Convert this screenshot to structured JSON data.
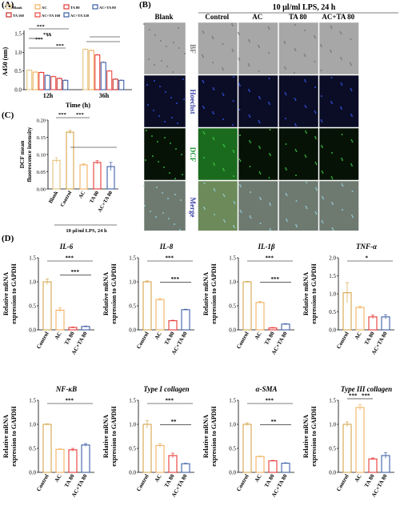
{
  "panels": {
    "a": "(A)",
    "b": "(B)",
    "c": "(C)",
    "d": "(D)"
  },
  "colors": {
    "Blank": "#e3c37e",
    "AC": "#f2b15f",
    "TA 80": "#e63a37",
    "AC+TA 80": "#3d5fa8",
    "TA 160": "#e8493f",
    "AC+TA 160": "#c9302c",
    "AC+TA 320": "#3d5fa8",
    "Control": "#d4a64a"
  },
  "panel_b": {
    "header": "10 μl/ml LPS, 24 h",
    "columns": [
      "Blank",
      "Control",
      "AC",
      "TA 80",
      "AC+TA 80"
    ],
    "rows": [
      {
        "label": "BF",
        "color": "#777777"
      },
      {
        "label": "Hoechst",
        "color": "#3b45a8"
      },
      {
        "label": "DCF",
        "color": "#1f9a3a"
      },
      {
        "label": "Merge",
        "color": "#3b45a8"
      }
    ],
    "scale_bar": "50 μm"
  },
  "chart_data": [
    {
      "id": "A",
      "type": "bar",
      "ylabel": "A450 (nm)",
      "xlabel": "Time (h)",
      "categories": [
        "12h",
        "36h"
      ],
      "legend": [
        "Blank",
        "AC",
        "TA 80",
        "AC+TA 80",
        "TA 160",
        "AC+TA 160",
        "AC+TA 320"
      ],
      "legend_keys": [
        "Blank",
        "AC",
        "TA 80",
        "AC+TA 80",
        "AC+TA 160",
        "TA 160",
        "AC+TA 320"
      ],
      "series_order": [
        "Blank",
        "AC",
        "TA 80",
        "AC+TA 80",
        "TA 160",
        "AC+TA 160",
        "AC+TA 320"
      ],
      "series": [
        {
          "name": "Blank",
          "values": [
            0.52,
            1.08
          ]
        },
        {
          "name": "AC",
          "values": [
            0.47,
            1.05
          ]
        },
        {
          "name": "TA 80",
          "values": [
            0.46,
            0.93
          ]
        },
        {
          "name": "AC+TA 80",
          "values": [
            0.38,
            0.73
          ]
        },
        {
          "name": "TA 160",
          "values": [
            0.35,
            0.5
          ]
        },
        {
          "name": "AC+TA 160",
          "values": [
            0.3,
            0.28
          ]
        },
        {
          "name": "AC+TA 320",
          "values": [
            0.25,
            0.25
          ]
        }
      ],
      "ylim": [
        0,
        1.5
      ],
      "yticks": [
        "0.0",
        "0.5",
        "1.0",
        "1.5"
      ],
      "significance": [
        "***",
        "**",
        "***",
        "***",
        "***"
      ]
    },
    {
      "id": "C",
      "type": "bar",
      "ylabel": "DCF mean fluorescence intensity",
      "categories": [
        "Blank",
        "Control",
        "AC",
        "TA 80",
        "AC+TA 80"
      ],
      "values": [
        0.083,
        0.165,
        0.07,
        0.077,
        0.065
      ],
      "errors": [
        0.008,
        0.005,
        0.003,
        0.005,
        0.012
      ],
      "ylim": [
        0,
        0.2
      ],
      "yticks": [
        "0.00",
        "0.05",
        "0.10",
        "0.15",
        "0.20"
      ],
      "xlabel": "10 μl/ml LPS, 24 h",
      "significance": [
        "***",
        "***"
      ]
    },
    {
      "id": "D-IL-6",
      "type": "bar",
      "title": "IL-6",
      "ylabel": "Relative mRNA expression to GAPDH",
      "categories": [
        "Control",
        "AC",
        "TA 80",
        "AC+TA 80"
      ],
      "values": [
        1.0,
        0.41,
        0.05,
        0.07
      ],
      "errors": [
        0.06,
        0.05,
        0.01,
        0.01
      ],
      "ylim": [
        0,
        1.5
      ],
      "yticks": [
        "0.0",
        "0.5",
        "1.0",
        "1.5"
      ],
      "significance": [
        "***",
        "***"
      ]
    },
    {
      "id": "D-IL-8",
      "type": "bar",
      "title": "IL-8",
      "ylabel": "Relative mRNA expression to GAPDH",
      "categories": [
        "Control",
        "AC",
        "TA 80",
        "AC+TA 80"
      ],
      "values": [
        1.0,
        0.63,
        0.19,
        0.42
      ],
      "errors": [
        0.02,
        0.02,
        0.01,
        0.01
      ],
      "ylim": [
        0,
        1.5
      ],
      "yticks": [
        "0.0",
        "0.5",
        "1.0",
        "1.5"
      ],
      "significance": [
        "***",
        "***"
      ]
    },
    {
      "id": "D-IL-1b",
      "type": "bar",
      "title": "IL-1β",
      "ylabel": "Relative mRNA expression to GAPDH",
      "categories": [
        "Control",
        "AC",
        "TA 80",
        "AC+TA 80"
      ],
      "values": [
        1.0,
        0.57,
        0.04,
        0.12
      ],
      "errors": [
        0.01,
        0.02,
        0.01,
        0.01
      ],
      "ylim": [
        0,
        1.5
      ],
      "yticks": [
        "0.0",
        "0.5",
        "1.0",
        "1.5"
      ],
      "significance": [
        "***",
        "***"
      ]
    },
    {
      "id": "D-TNF-a",
      "type": "bar",
      "title": "TNF-α",
      "ylabel": "Relative mRNA expression to GAPDH",
      "categories": [
        "Control",
        "AC",
        "TA 80",
        "AC+TA 80"
      ],
      "values": [
        1.03,
        0.62,
        0.36,
        0.36
      ],
      "errors": [
        0.28,
        0.04,
        0.05,
        0.06
      ],
      "ylim": [
        0,
        2.0
      ],
      "yticks": [
        "0.0",
        "0.5",
        "1.0",
        "1.5",
        "2.0"
      ],
      "significance": [
        "*"
      ]
    },
    {
      "id": "D-NF-kB",
      "type": "bar",
      "title": "NF-κB",
      "ylabel": "Relative mRNA expression to GAPDH",
      "categories": [
        "Control",
        "AC",
        "TA 80",
        "AC+TA 80"
      ],
      "values": [
        1.0,
        0.48,
        0.47,
        0.57
      ],
      "errors": [
        0.01,
        0.01,
        0.03,
        0.03
      ],
      "ylim": [
        0,
        1.5
      ],
      "yticks": [
        "0.0",
        "0.5",
        "1.0",
        "1.5"
      ],
      "significance": [
        "***"
      ]
    },
    {
      "id": "D-Type-I",
      "type": "bar",
      "title": "Type I collagen",
      "ylabel": "Relative mRNA expression to GAPDH",
      "categories": [
        "Control",
        "AC",
        "TA 80",
        "AC+TA 80"
      ],
      "values": [
        1.0,
        0.56,
        0.35,
        0.18
      ],
      "errors": [
        0.08,
        0.04,
        0.05,
        0.01
      ],
      "ylim": [
        0,
        1.5
      ],
      "yticks": [
        "0.0",
        "0.5",
        "1.0",
        "1.5"
      ],
      "significance": [
        "***",
        "**"
      ]
    },
    {
      "id": "D-a-SMA",
      "type": "bar",
      "title": "α-SMA",
      "ylabel": "Relative mRNA expression to GAPDH",
      "categories": [
        "Control",
        "AC",
        "TA 80",
        "AC+TA 80"
      ],
      "values": [
        1.0,
        0.33,
        0.24,
        0.19
      ],
      "errors": [
        0.03,
        0.01,
        0.01,
        0.01
      ],
      "ylim": [
        0,
        1.5
      ],
      "yticks": [
        "0.0",
        "0.5",
        "1.0",
        "1.5"
      ],
      "significance": [
        "***",
        "**"
      ]
    },
    {
      "id": "D-Type-III",
      "type": "bar",
      "title": "Type III collagen",
      "ylabel": "Relative mRNA expression to GAPDH",
      "categories": [
        "Control",
        "AC",
        "TA 80",
        "AC+TA 80"
      ],
      "values": [
        1.0,
        1.35,
        0.28,
        0.35
      ],
      "errors": [
        0.05,
        0.06,
        0.02,
        0.06
      ],
      "ylim": [
        0,
        1.5
      ],
      "yticks": [
        "0.0",
        "0.5",
        "1.0",
        "1.5"
      ],
      "significance": [
        "***",
        "***"
      ]
    }
  ]
}
